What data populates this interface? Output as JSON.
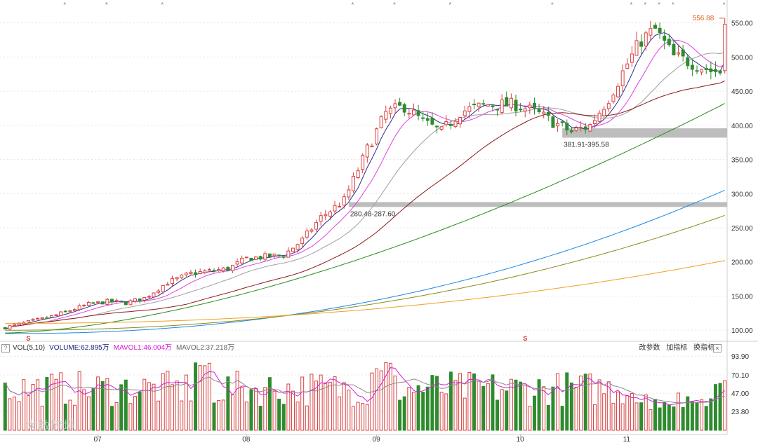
{
  "chart_data": [
    {
      "type": "candlestick",
      "ylim": [
        93,
        565
      ],
      "y_ticks": [
        100,
        150,
        200,
        250,
        300,
        350,
        400,
        450,
        500,
        550
      ],
      "y_tick_labels": [
        "100.00",
        "150.00",
        "200.00",
        "250.00",
        "300.00",
        "350.00",
        "400.00",
        "450.00",
        "500.00",
        "550.00"
      ],
      "x_month_labels": [
        {
          "label": "07",
          "index": 20
        },
        {
          "label": "08",
          "index": 52
        },
        {
          "label": "09",
          "index": 80
        },
        {
          "label": "10",
          "index": 111
        },
        {
          "label": "11",
          "index": 134
        }
      ],
      "max_label": "556.88",
      "ma_colors": [
        "#2b2b8c",
        "#e040e0",
        "#a0a0a0",
        "#8b1a1a",
        "#2e8b22",
        "#1e88e5",
        "#8b8b1a",
        "#f0a020"
      ],
      "up_color": "#d94040",
      "down_color": "#2e8b2e",
      "gap_zones": [
        {
          "low": 381.91,
          "high": 395.58,
          "label": "381.91-395.58"
        },
        {
          "low": 280.48,
          "high": 287.6,
          "label": "280.48-287.60"
        }
      ],
      "signal_markers_top": [
        13,
        22,
        34,
        75,
        84,
        96,
        118,
        135,
        138,
        141,
        144,
        155
      ],
      "bottom_marker_symbol": "S",
      "bottom_markers": [
        5,
        112
      ]
    },
    {
      "type": "bar",
      "indicator": "VOL(5,10)",
      "ylim": [
        0,
        95
      ],
      "y_ticks": [
        23.8,
        47.0,
        70.1,
        93.9
      ],
      "y_tick_labels": [
        "23.80",
        "47.00",
        "70.10",
        "93.90"
      ],
      "unit": "万",
      "volume_label": "VOLUME:62.895万",
      "mavol1_label": "MAVOL1:46.004万",
      "mavol2_label": "MAVOL2:37.218万"
    }
  ],
  "legend": {
    "q": "?",
    "vol": "VOL(5,10)",
    "volume": "VOLUME:62.895万",
    "mavol1": "MAVOL1:46.004万",
    "mavol2": "MAVOL2:37.218万",
    "btn_params": "改参数",
    "btn_add": "加指标",
    "btn_switch": "换指标",
    "close": "×"
  },
  "watermark": "大数跨境"
}
